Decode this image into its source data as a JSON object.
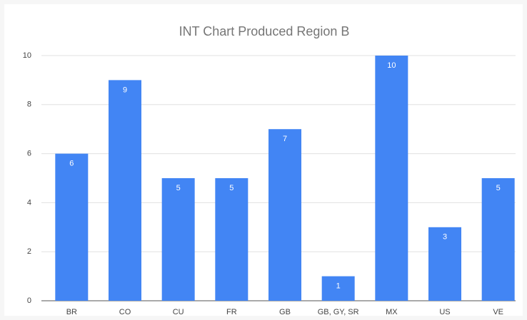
{
  "chart_data": {
    "type": "bar",
    "title": "INT Chart Produced Region B",
    "categories": [
      "BR",
      "CO",
      "CU",
      "FR",
      "GB",
      "GB, GY, SR",
      "MX",
      "US",
      "VE"
    ],
    "values": [
      6,
      9,
      5,
      5,
      7,
      1,
      10,
      3,
      5
    ],
    "color": "#4285f4",
    "ylim": [
      0,
      10
    ],
    "yticks": [
      0,
      2,
      4,
      6,
      8,
      10
    ],
    "grid": true
  }
}
